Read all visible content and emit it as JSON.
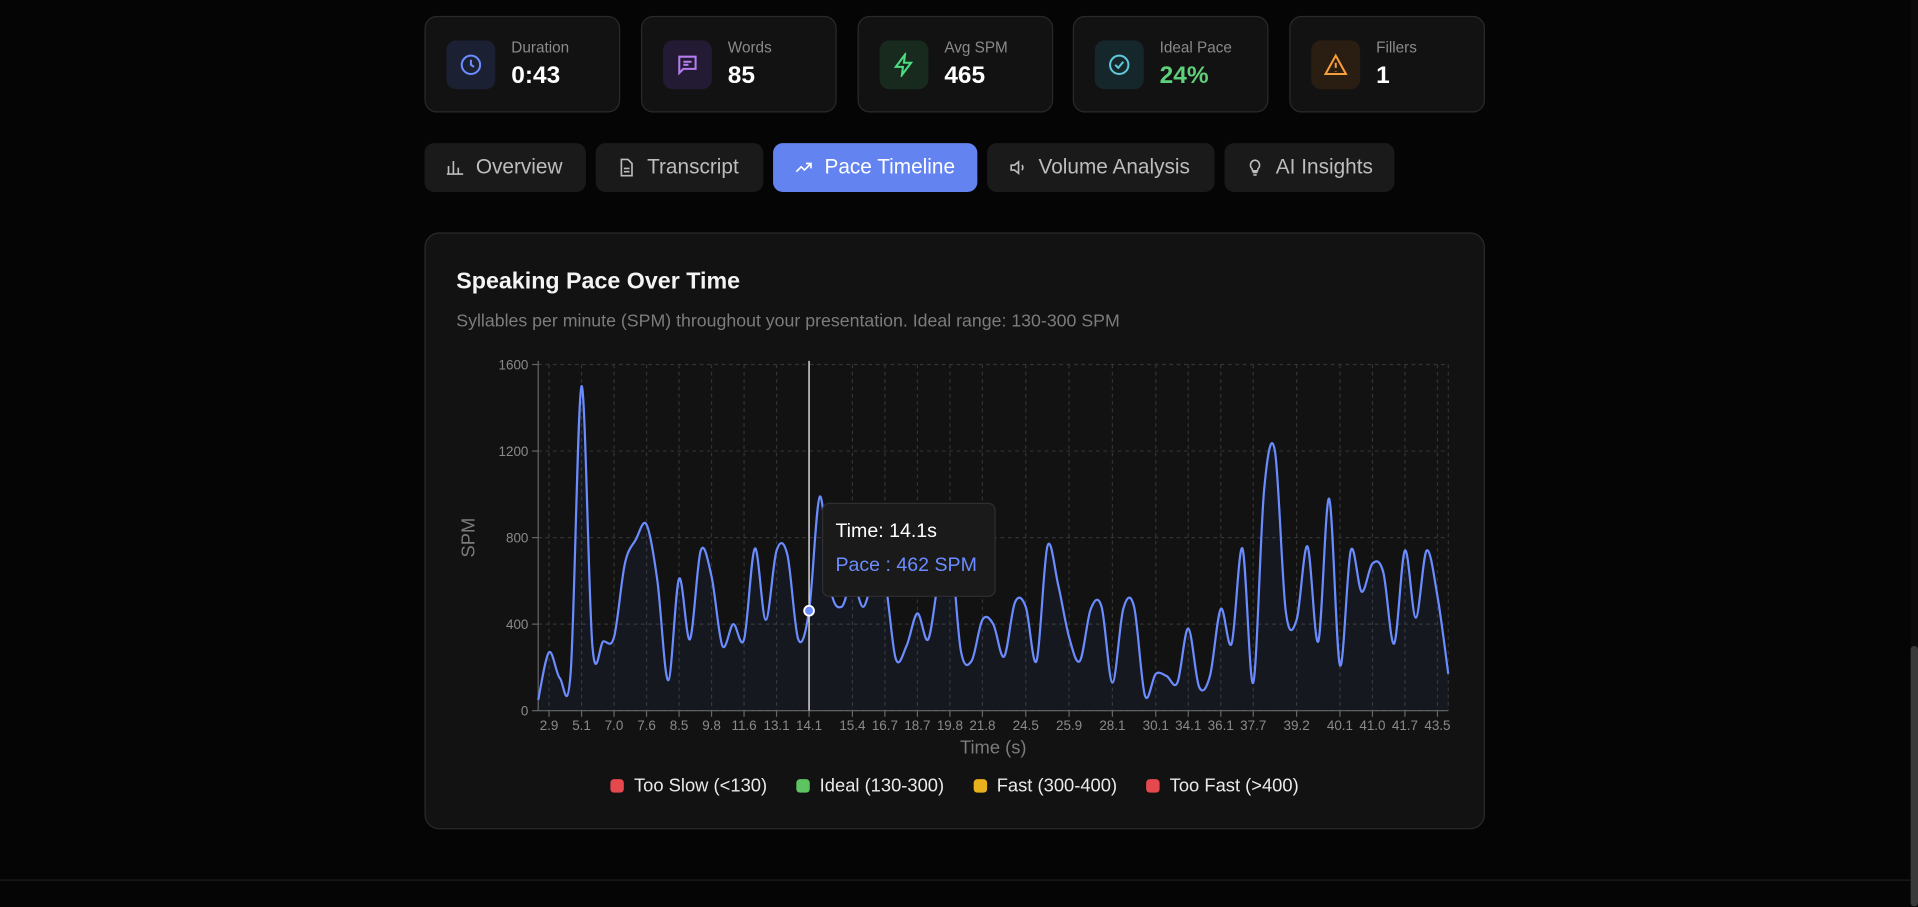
{
  "stats": [
    {
      "label": "Duration",
      "value": "0:43"
    },
    {
      "label": "Words",
      "value": "85"
    },
    {
      "label": "Avg SPM",
      "value": "465"
    },
    {
      "label": "Ideal Pace",
      "value": "24%"
    },
    {
      "label": "Fillers",
      "value": "1"
    }
  ],
  "tabs": [
    "Overview",
    "Transcript",
    "Pace Timeline",
    "Volume Analysis",
    "AI Insights"
  ],
  "chart_data": {
    "type": "line",
    "title": "Speaking Pace Over Time",
    "subtitle": "Syllables per minute (SPM) throughout your presentation. Ideal range: 130-300 SPM",
    "x_label": "Time (s)",
    "y_label": "SPM",
    "categories": [
      null,
      "2.9",
      null,
      null,
      "5.1",
      null,
      null,
      "7.0",
      null,
      null,
      "7.6",
      null,
      null,
      "8.5",
      null,
      null,
      "9.8",
      null,
      null,
      "11.6",
      null,
      null,
      "13.1",
      null,
      null,
      "14.1",
      null,
      null,
      null,
      "15.4",
      null,
      null,
      "16.7",
      null,
      null,
      "18.7",
      null,
      null,
      "19.8",
      null,
      null,
      "21.8",
      null,
      null,
      null,
      "24.5",
      null,
      null,
      null,
      "25.9",
      null,
      null,
      null,
      "28.1",
      null,
      null,
      null,
      "30.1",
      null,
      null,
      "34.1",
      null,
      null,
      "36.1",
      null,
      null,
      "37.7",
      null,
      null,
      null,
      "39.2",
      null,
      null,
      null,
      "40.1",
      null,
      null,
      "41.0",
      null,
      null,
      "41.7",
      null,
      null,
      "43.5",
      null
    ],
    "values": [
      50,
      270,
      150,
      180,
      1500,
      300,
      320,
      340,
      680,
      790,
      860,
      600,
      140,
      610,
      330,
      740,
      620,
      300,
      400,
      330,
      750,
      420,
      740,
      720,
      330,
      462,
      990,
      560,
      480,
      600,
      480,
      620,
      600,
      240,
      300,
      450,
      330,
      620,
      780,
      280,
      230,
      420,
      400,
      250,
      500,
      480,
      230,
      760,
      580,
      340,
      230,
      470,
      480,
      130,
      470,
      480,
      70,
      170,
      160,
      130,
      380,
      110,
      160,
      470,
      310,
      750,
      130,
      1020,
      1200,
      460,
      420,
      760,
      320,
      980,
      210,
      740,
      550,
      680,
      640,
      310,
      740,
      430,
      740,
      530,
      170
    ],
    "color": "#6b8cff",
    "ylim": [
      0,
      1600
    ],
    "yticks": [
      0,
      400,
      800,
      1200,
      1600
    ],
    "grid": true,
    "active_index": 25,
    "tooltip": {
      "time": "Time: 14.1s",
      "pace": "Pace : 462 SPM"
    },
    "legend": [
      {
        "label": "Too Slow (<130)",
        "color": "#e5484d"
      },
      {
        "label": "Ideal (130-300)",
        "color": "#5cc461"
      },
      {
        "label": "Fast (300-400)",
        "color": "#e8b01c"
      },
      {
        "label": "Too Fast (>400)",
        "color": "#e5484d"
      }
    ]
  }
}
